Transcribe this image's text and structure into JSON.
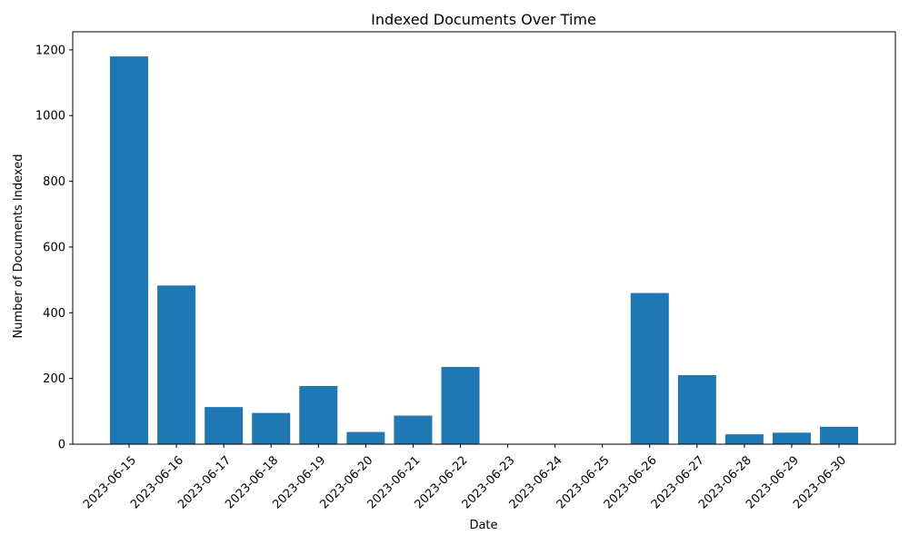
{
  "chart_data": {
    "type": "bar",
    "title": "Indexed Documents Over Time",
    "xlabel": "Date",
    "ylabel": "Number of Documents Indexed",
    "categories": [
      "2023-06-15",
      "2023-06-16",
      "2023-06-17",
      "2023-06-18",
      "2023-06-19",
      "2023-06-20",
      "2023-06-21",
      "2023-06-22",
      "2023-06-23",
      "2023-06-24",
      "2023-06-25",
      "2023-06-26",
      "2023-06-27",
      "2023-06-28",
      "2023-06-29",
      "2023-06-30"
    ],
    "values": [
      1180,
      483,
      113,
      95,
      177,
      37,
      87,
      235,
      0,
      0,
      0,
      460,
      210,
      30,
      35,
      53
    ],
    "ylim": [
      0,
      1255
    ],
    "yticks": [
      0,
      200,
      400,
      600,
      800,
      1000,
      1200
    ],
    "grid": false,
    "legend": false,
    "bar_color": "#1f77b4"
  }
}
